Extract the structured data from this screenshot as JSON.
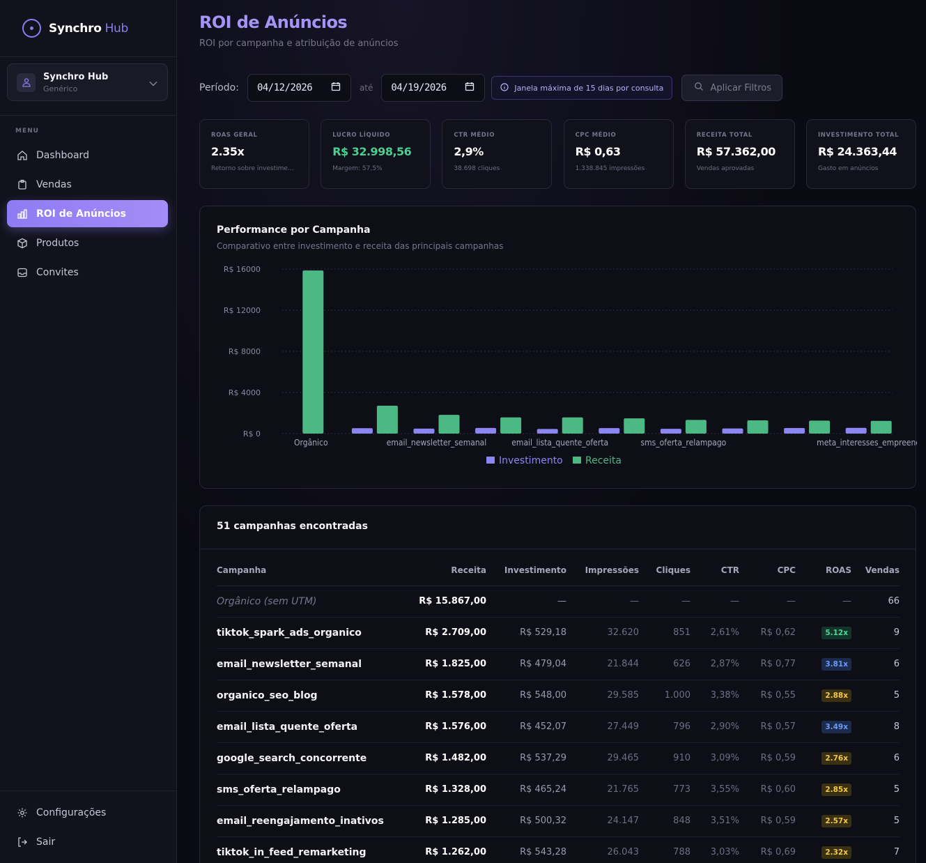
{
  "brand": {
    "name": "Synchro",
    "accent": "Hub"
  },
  "workspace": {
    "title": "Synchro Hub",
    "subtitle": "Genérico"
  },
  "sidebar": {
    "menu_label": "MENU",
    "items": [
      {
        "label": "Dashboard",
        "icon": "home-icon"
      },
      {
        "label": "Vendas",
        "icon": "clipboard-icon"
      },
      {
        "label": "ROI de Anúncios",
        "icon": "bar-chart-icon",
        "active": true
      },
      {
        "label": "Produtos",
        "icon": "box-icon"
      },
      {
        "label": "Convites",
        "icon": "inbox-icon"
      }
    ],
    "bottom_items": [
      {
        "label": "Configurações",
        "icon": "gear-icon"
      },
      {
        "label": "Sair",
        "icon": "logout-icon"
      }
    ]
  },
  "header": {
    "title": "ROI de Anúncios",
    "subtitle": "ROI por campanha e atribuição de anúncios"
  },
  "filters": {
    "period_label": "Período:",
    "start_date": "04/12/2026",
    "separator": "até",
    "end_date": "04/19/2026",
    "info": "Janela máxima de 15 dias por consulta",
    "apply_label": "Aplicar Filtros"
  },
  "kpis": [
    {
      "label": "ROAS GERAL",
      "value": "2.35x",
      "sub": "Retorno sobre investimento",
      "green": false
    },
    {
      "label": "LUCRO LÍQUIDO",
      "value": "R$ 32.998,56",
      "sub": "Margem: 57,5%",
      "green": true
    },
    {
      "label": "CTR MÉDIO",
      "value": "2,9%",
      "sub": "38.698 cliques",
      "green": false
    },
    {
      "label": "CPC MÉDIO",
      "value": "R$ 0,63",
      "sub": "1.338.845 impressões",
      "green": false
    },
    {
      "label": "RECEITA TOTAL",
      "value": "R$ 57.362,00",
      "sub": "Vendas aprovadas",
      "green": false
    },
    {
      "label": "INVESTIMENTO TOTAL",
      "value": "R$ 24.363,44",
      "sub": "Gasto em anúncios",
      "green": false
    }
  ],
  "chart_card": {
    "title": "Performance por Campanha",
    "subtitle": "Comparativo entre investimento e receita das principais campanhas"
  },
  "chart_data": {
    "type": "bar",
    "categories": [
      "Orgânico",
      "tiktok_spark_ads_organico",
      "email_newsletter_semanal",
      "organico_seo_blog",
      "email_lista_quente_oferta",
      "google_search_concorrente",
      "sms_oferta_relampago",
      "email_reengajamento_inativos",
      "tiktok_in_feed_remarketing",
      "meta_interesses_empreend"
    ],
    "visible_tick_labels": [
      "Orgânico",
      "",
      "email_newsletter_semanal",
      "",
      "email_lista_quente_oferta",
      "",
      "sms_oferta_relampago",
      "",
      "",
      "meta_interesses_empreend"
    ],
    "series": [
      {
        "name": "Investimento",
        "color": "#8b86f2",
        "values": [
          0,
          529.18,
          479.04,
          548.0,
          452.07,
          537.29,
          465.24,
          500.32,
          543.28,
          560
        ]
      },
      {
        "name": "Receita",
        "color": "#4cb884",
        "values": [
          15867,
          2709,
          1825,
          1578,
          1576,
          1482,
          1328,
          1285,
          1262,
          1240
        ]
      }
    ],
    "ylim": [
      0,
      16000
    ],
    "yticks": [
      0,
      4000,
      8000,
      12000,
      16000
    ],
    "ytick_labels": [
      "R$ 0",
      "R$ 4000",
      "R$ 8000",
      "R$ 12000",
      "R$ 16000"
    ],
    "grid": true,
    "legend_position": "bottom-center"
  },
  "table": {
    "title": "51 campanhas encontradas",
    "columns": [
      "Campanha",
      "Receita",
      "Investimento",
      "Impressões",
      "Cliques",
      "CTR",
      "CPC",
      "ROAS",
      "Vendas"
    ],
    "rows": [
      {
        "name": "Orgânico (sem UTM)",
        "organic": true,
        "receita": "R$ 15.867,00",
        "invest": "—",
        "impr": "—",
        "cliques": "—",
        "ctr": "—",
        "cpc": "—",
        "roas": "—",
        "vendas": "66"
      },
      {
        "name": "tiktok_spark_ads_organico",
        "receita": "R$ 2.709,00",
        "invest": "R$ 529,18",
        "impr": "32.620",
        "cliques": "851",
        "ctr": "2,61%",
        "cpc": "R$ 0,62",
        "roas": "5.12x",
        "roas_tier": "green",
        "vendas": "9"
      },
      {
        "name": "email_newsletter_semanal",
        "receita": "R$ 1.825,00",
        "invest": "R$ 479,04",
        "impr": "21.844",
        "cliques": "626",
        "ctr": "2,87%",
        "cpc": "R$ 0,77",
        "roas": "3.81x",
        "roas_tier": "blue",
        "vendas": "6"
      },
      {
        "name": "organico_seo_blog",
        "receita": "R$ 1.578,00",
        "invest": "R$ 548,00",
        "impr": "29.585",
        "cliques": "1.000",
        "ctr": "3,38%",
        "cpc": "R$ 0,55",
        "roas": "2.88x",
        "roas_tier": "yellow",
        "vendas": "5"
      },
      {
        "name": "email_lista_quente_oferta",
        "receita": "R$ 1.576,00",
        "invest": "R$ 452,07",
        "impr": "27.449",
        "cliques": "796",
        "ctr": "2,90%",
        "cpc": "R$ 0,57",
        "roas": "3.49x",
        "roas_tier": "blue",
        "vendas": "8"
      },
      {
        "name": "google_search_concorrente",
        "receita": "R$ 1.482,00",
        "invest": "R$ 537,29",
        "impr": "29.465",
        "cliques": "910",
        "ctr": "3,09%",
        "cpc": "R$ 0,59",
        "roas": "2.76x",
        "roas_tier": "yellow",
        "vendas": "6"
      },
      {
        "name": "sms_oferta_relampago",
        "receita": "R$ 1.328,00",
        "invest": "R$ 465,24",
        "impr": "21.765",
        "cliques": "773",
        "ctr": "3,55%",
        "cpc": "R$ 0,60",
        "roas": "2.85x",
        "roas_tier": "yellow",
        "vendas": "5"
      },
      {
        "name": "email_reengajamento_inativos",
        "receita": "R$ 1.285,00",
        "invest": "R$ 500,32",
        "impr": "24.147",
        "cliques": "848",
        "ctr": "3,51%",
        "cpc": "R$ 0,59",
        "roas": "2.57x",
        "roas_tier": "yellow",
        "vendas": "5"
      },
      {
        "name": "tiktok_in_feed_remarketing",
        "receita": "R$ 1.262,00",
        "invest": "R$ 543,28",
        "impr": "26.043",
        "cliques": "788",
        "ctr": "3,03%",
        "cpc": "R$ 0,69",
        "roas": "2.32x",
        "roas_tier": "yellow",
        "vendas": "7"
      }
    ]
  },
  "colors": {
    "accent": "#8b7cf0",
    "green": "#4cce8f",
    "roas_green_bg": "#12352a",
    "roas_green_fg": "#4cd99a",
    "roas_blue_bg": "#1b2a4d",
    "roas_blue_fg": "#6b9cf5",
    "roas_yellow_bg": "#3a3112",
    "roas_yellow_fg": "#f3c74a"
  }
}
